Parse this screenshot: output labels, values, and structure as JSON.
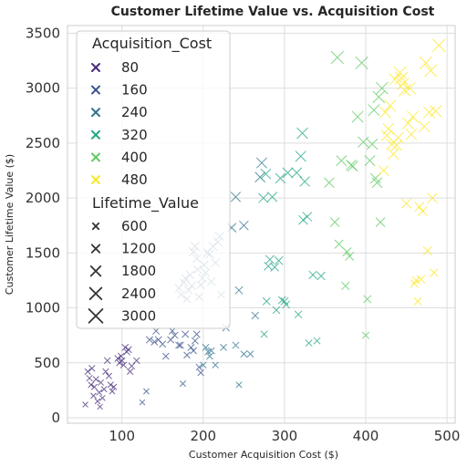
{
  "chart_data": {
    "type": "scatter",
    "title": "Customer Lifetime Value vs. Acquisition Cost",
    "xlabel": "Customer Acquisition Cost ($)",
    "ylabel": "Customer Lifetime Value ($)",
    "xlim": [
      33,
      510
    ],
    "ylim": [
      -50,
      3570
    ],
    "xticks": [
      100,
      200,
      300,
      400,
      500
    ],
    "yticks": [
      0,
      500,
      1000,
      1500,
      2000,
      2500,
      3000,
      3500
    ],
    "grid": true,
    "marker": "x",
    "hue": {
      "name": "Acquisition_Cost",
      "palette": "viridis",
      "entries": [
        {
          "label": "80",
          "color": "#472c7a"
        },
        {
          "label": "160",
          "color": "#3b528b"
        },
        {
          "label": "240",
          "color": "#2c728e"
        },
        {
          "label": "320",
          "color": "#21a585"
        },
        {
          "label": "400",
          "color": "#5ec962"
        },
        {
          "label": "480",
          "color": "#fde725"
        }
      ]
    },
    "size": {
      "name": "Lifetime_Value",
      "entries": [
        "600",
        "1200",
        "1800",
        "2400",
        "3000"
      ]
    },
    "legend_position": "upper-left",
    "points": [
      [
        55,
        120
      ],
      [
        58,
        420
      ],
      [
        60,
        360
      ],
      [
        62,
        300
      ],
      [
        63,
        450
      ],
      [
        65,
        200
      ],
      [
        66,
        280
      ],
      [
        68,
        350
      ],
      [
        70,
        150
      ],
      [
        72,
        230
      ],
      [
        73,
        100
      ],
      [
        74,
        320
      ],
      [
        76,
        180
      ],
      [
        78,
        260
      ],
      [
        80,
        420
      ],
      [
        82,
        520
      ],
      [
        84,
        380
      ],
      [
        86,
        300
      ],
      [
        88,
        240
      ],
      [
        90,
        280
      ],
      [
        95,
        540
      ],
      [
        97,
        500
      ],
      [
        99,
        560
      ],
      [
        100,
        520
      ],
      [
        102,
        480
      ],
      [
        104,
        640
      ],
      [
        106,
        600
      ],
      [
        108,
        620
      ],
      [
        110,
        420
      ],
      [
        112,
        470
      ],
      [
        118,
        520
      ],
      [
        125,
        140
      ],
      [
        130,
        240
      ],
      [
        134,
        710
      ],
      [
        140,
        690
      ],
      [
        142,
        790
      ],
      [
        145,
        710
      ],
      [
        150,
        670
      ],
      [
        154,
        560
      ],
      [
        160,
        710
      ],
      [
        162,
        790
      ],
      [
        165,
        750
      ],
      [
        170,
        660
      ],
      [
        172,
        660
      ],
      [
        175,
        310
      ],
      [
        178,
        760
      ],
      [
        180,
        570
      ],
      [
        185,
        640
      ],
      [
        188,
        610
      ],
      [
        190,
        700
      ],
      [
        192,
        760
      ],
      [
        195,
        460
      ],
      [
        197,
        410
      ],
      [
        200,
        480
      ],
      [
        203,
        640
      ],
      [
        206,
        600
      ],
      [
        208,
        560
      ],
      [
        210,
        610
      ],
      [
        215,
        480
      ],
      [
        225,
        640
      ],
      [
        228,
        820
      ],
      [
        240,
        660
      ],
      [
        244,
        300
      ],
      [
        250,
        580
      ],
      [
        258,
        580
      ],
      [
        170,
        1180
      ],
      [
        173,
        1120
      ],
      [
        176,
        1230
      ],
      [
        178,
        1270
      ],
      [
        180,
        1080
      ],
      [
        182,
        1160
      ],
      [
        184,
        1300
      ],
      [
        186,
        1200
      ],
      [
        188,
        1510
      ],
      [
        190,
        1560
      ],
      [
        192,
        1450
      ],
      [
        193,
        1350
      ],
      [
        195,
        1100
      ],
      [
        197,
        1210
      ],
      [
        199,
        1270
      ],
      [
        201,
        1390
      ],
      [
        203,
        1320
      ],
      [
        205,
        1500
      ],
      [
        208,
        1490
      ],
      [
        210,
        1240
      ],
      [
        212,
        1560
      ],
      [
        215,
        1410
      ],
      [
        218,
        1600
      ],
      [
        220,
        1650
      ],
      [
        222,
        1120
      ],
      [
        235,
        1730
      ],
      [
        240,
        2010
      ],
      [
        244,
        1160
      ],
      [
        250,
        1750
      ],
      [
        264,
        930
      ],
      [
        270,
        2190
      ],
      [
        272,
        2320
      ],
      [
        274,
        2000
      ],
      [
        275,
        760
      ],
      [
        277,
        2220
      ],
      [
        278,
        1060
      ],
      [
        280,
        1380
      ],
      [
        282,
        1440
      ],
      [
        285,
        2010
      ],
      [
        288,
        1370
      ],
      [
        290,
        980
      ],
      [
        293,
        1430
      ],
      [
        295,
        2180
      ],
      [
        297,
        1070
      ],
      [
        300,
        1060
      ],
      [
        302,
        1030
      ],
      [
        304,
        2230
      ],
      [
        315,
        2230
      ],
      [
        317,
        940
      ],
      [
        320,
        2380
      ],
      [
        322,
        2590
      ],
      [
        323,
        1800
      ],
      [
        325,
        2150
      ],
      [
        328,
        1830
      ],
      [
        330,
        680
      ],
      [
        335,
        1300
      ],
      [
        340,
        700
      ],
      [
        345,
        1290
      ],
      [
        355,
        2140
      ],
      [
        362,
        1780
      ],
      [
        365,
        3280
      ],
      [
        367,
        1580
      ],
      [
        370,
        2340
      ],
      [
        375,
        1200
      ],
      [
        377,
        1510
      ],
      [
        380,
        1470
      ],
      [
        382,
        2300
      ],
      [
        384,
        2290
      ],
      [
        390,
        2740
      ],
      [
        395,
        3230
      ],
      [
        397,
        2510
      ],
      [
        400,
        750
      ],
      [
        402,
        1080
      ],
      [
        405,
        2340
      ],
      [
        408,
        2490
      ],
      [
        410,
        2800
      ],
      [
        412,
        2180
      ],
      [
        414,
        2140
      ],
      [
        416,
        2920
      ],
      [
        418,
        1780
      ],
      [
        420,
        3000
      ],
      [
        422,
        2250
      ],
      [
        424,
        2780
      ],
      [
        426,
        2570
      ],
      [
        428,
        2630
      ],
      [
        430,
        2840
      ],
      [
        432,
        2490
      ],
      [
        434,
        2400
      ],
      [
        436,
        3080
      ],
      [
        438,
        2480
      ],
      [
        440,
        2550
      ],
      [
        442,
        3140
      ],
      [
        444,
        3090
      ],
      [
        446,
        3040
      ],
      [
        448,
        2980
      ],
      [
        450,
        1950
      ],
      [
        452,
        2680
      ],
      [
        454,
        3000
      ],
      [
        456,
        2580
      ],
      [
        458,
        2740
      ],
      [
        460,
        1220
      ],
      [
        462,
        1250
      ],
      [
        464,
        1060
      ],
      [
        466,
        1920
      ],
      [
        468,
        1260
      ],
      [
        470,
        1880
      ],
      [
        472,
        2650
      ],
      [
        474,
        3230
      ],
      [
        476,
        1520
      ],
      [
        478,
        2780
      ],
      [
        480,
        3160
      ],
      [
        482,
        2000
      ],
      [
        484,
        1320
      ],
      [
        486,
        2790
      ],
      [
        490,
        3390
      ]
    ]
  }
}
